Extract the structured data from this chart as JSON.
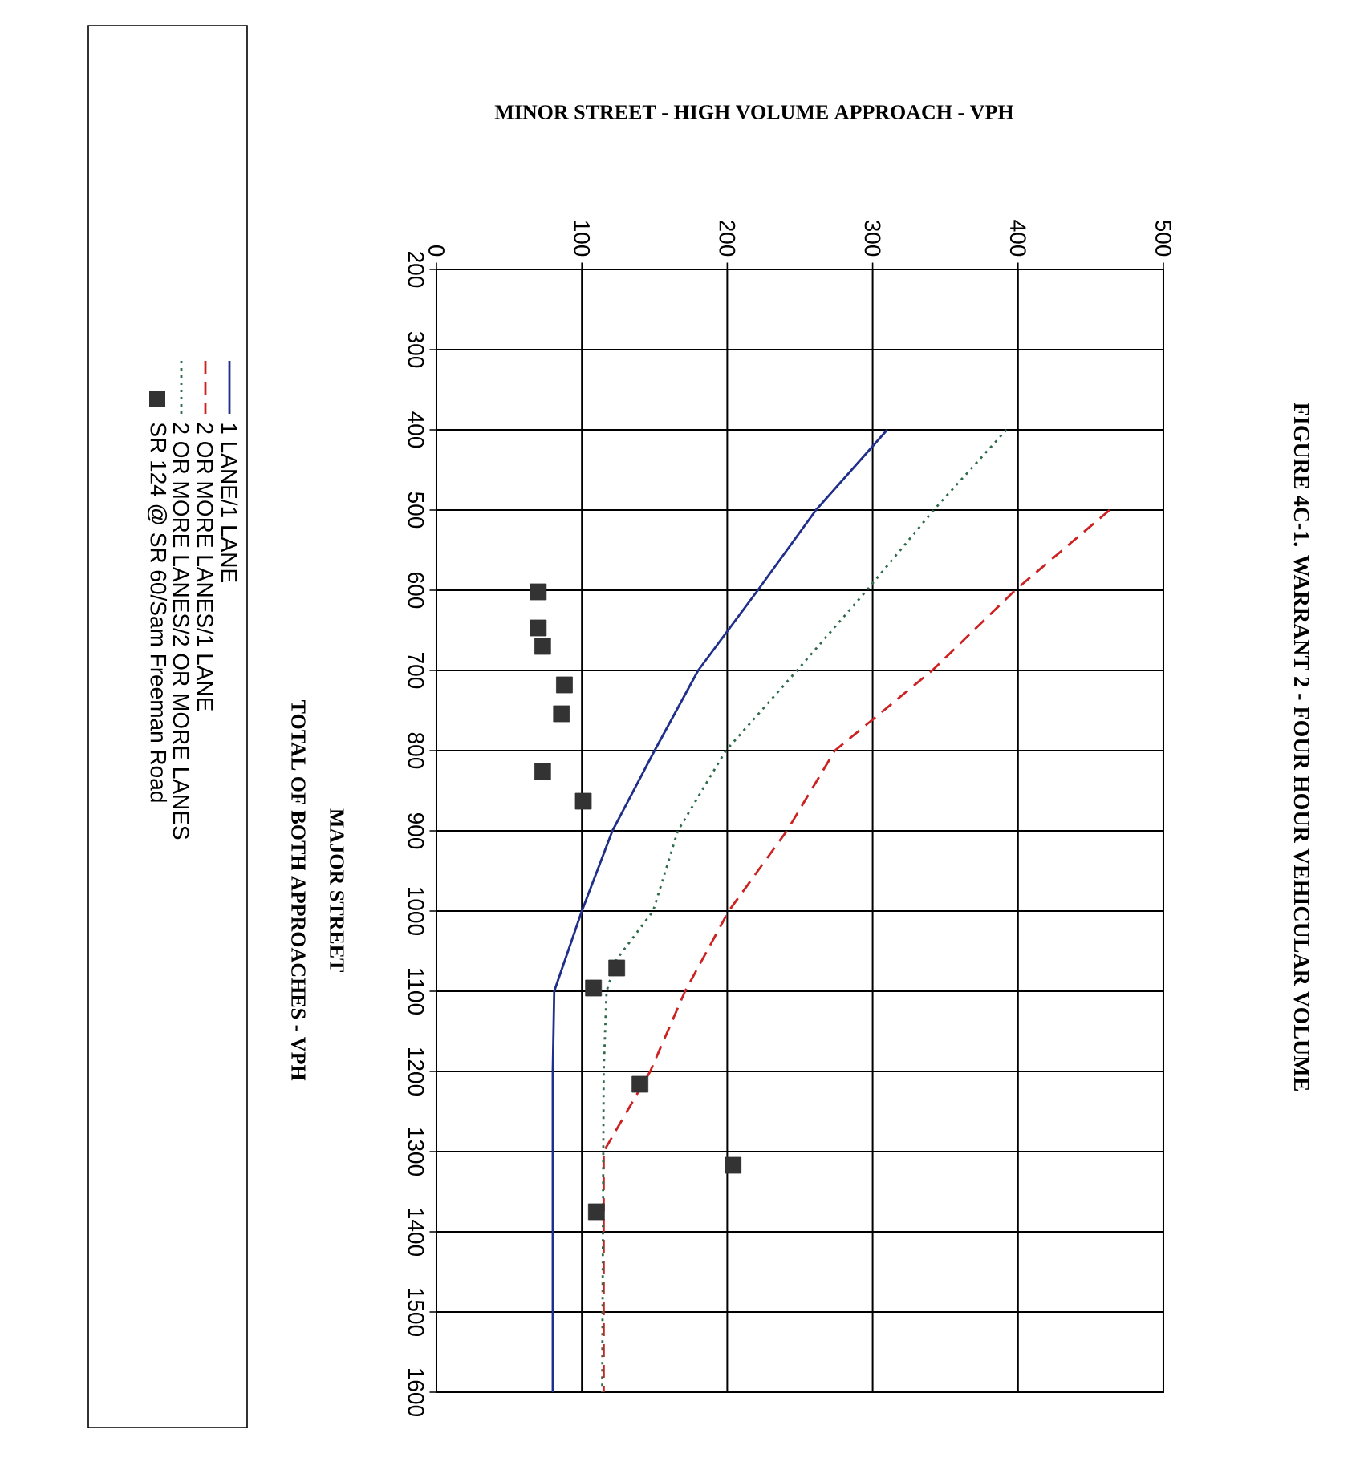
{
  "chart_data": {
    "type": "line",
    "title": "FIGURE 4C-1. WARRANT 2 - FOUR HOUR VEHICULAR VOLUME",
    "xlabel": "MINOR STREET - HIGH VOLUME APPROACH - VPH",
    "ylabel": "MAJOR STREET",
    "annotations": [
      "TOTAL OF BOTH APPROACHES - VPH"
    ],
    "xlim": [
      0,
      500
    ],
    "xticks": [
      0,
      100,
      200,
      300,
      400,
      500
    ],
    "ylim": [
      1600,
      200
    ],
    "yticks": [
      200,
      300,
      400,
      500,
      600,
      700,
      800,
      900,
      1000,
      1100,
      1200,
      1300,
      1400,
      1500,
      1600
    ],
    "grid": true,
    "legend": "left",
    "series": [
      {
        "name": "1 LANE/1 LANE",
        "color": "#1f2f8a",
        "line_style": "solid",
        "marker": "none",
        "values": [
          400,
          500,
          600,
          700,
          800,
          900,
          1000,
          1100,
          1200,
          1600
        ],
        "x": [
          310,
          261,
          221,
          180,
          150,
          121,
          100,
          81,
          80,
          80
        ]
      },
      {
        "name": "2 OR MORE LANES/1 LANE",
        "color": "#cc2222",
        "line_style": "dashed",
        "marker": "none",
        "values": [
          500,
          600,
          700,
          800,
          900,
          1000,
          1100,
          1200,
          1300,
          1600
        ],
        "x": [
          463,
          398,
          341,
          274,
          241,
          201,
          171,
          147,
          115,
          115
        ]
      },
      {
        "name": "2 OR MORE LANES/2 OR MORE LANES",
        "color": "#2e6b4a",
        "line_style": "dotted",
        "marker": "none",
        "values": [
          400,
          500,
          600,
          700,
          800,
          900,
          1000,
          1060,
          1100,
          1200,
          1600
        ],
        "x": [
          392,
          342,
          296,
          248,
          199,
          166,
          149,
          124,
          117,
          115,
          114
        ]
      },
      {
        "name": "SR 124 @ SR 60/Sam Freeman Road",
        "type": "scatter",
        "color": "#333333",
        "marker": "square",
        "values": [
          602,
          647,
          670,
          718,
          754,
          826,
          863,
          1071,
          1096,
          1216,
          1317,
          1375
        ],
        "x": [
          70,
          70,
          73,
          88,
          86,
          73,
          101,
          124,
          108,
          140,
          204,
          110
        ]
      }
    ]
  }
}
